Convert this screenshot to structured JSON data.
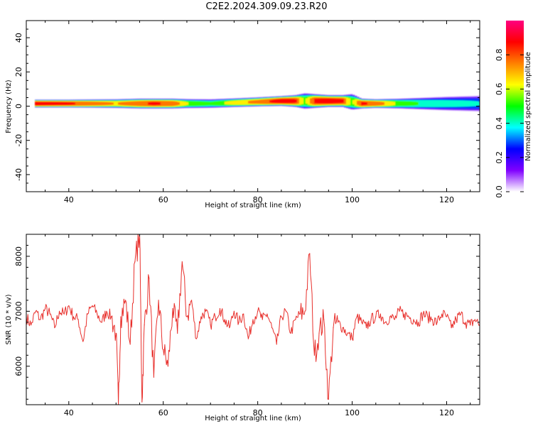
{
  "figure": {
    "title": "C2E2.2024.309.09.23.R20"
  },
  "chart_data": [
    {
      "type": "heatmap",
      "xlabel": "Height of straight line (km)",
      "ylabel": "Frequency (Hz)",
      "xlim": [
        31,
        127
      ],
      "ylim": [
        -50,
        50
      ],
      "xticks": [
        40,
        60,
        80,
        100,
        120
      ],
      "yticks": [
        -40,
        -20,
        0,
        20,
        40
      ],
      "colorbar": {
        "label": "Normalized spectral amplitude",
        "range": [
          0,
          1
        ],
        "ticks": [
          "0.0",
          "0.2",
          "0.4",
          "0.6",
          "0.8"
        ],
        "colormap": [
          "#ffffff",
          "#8000ff",
          "#0000ff",
          "#00ffff",
          "#00ff00",
          "#ffff00",
          "#ff8000",
          "#ff0000",
          "#ff0080"
        ]
      },
      "band": {
        "x": [
          33,
          40,
          50,
          55,
          58,
          62,
          65,
          70,
          75,
          80,
          85,
          88,
          90,
          92,
          95,
          98,
          100,
          102,
          105,
          110,
          115,
          120,
          127
        ],
        "center_freq": [
          1.5,
          1.5,
          1.5,
          1.5,
          1.5,
          1.5,
          1.5,
          1.5,
          2,
          2.5,
          3,
          3,
          3,
          3,
          3,
          3,
          2.5,
          1.5,
          1.5,
          1.5,
          1.5,
          1.5,
          1.5
        ],
        "halfwidth": [
          2,
          2,
          2.2,
          2.5,
          2.5,
          2.5,
          2.3,
          2.2,
          2.2,
          2.3,
          2.5,
          3,
          4,
          3.5,
          3,
          3,
          4,
          2.5,
          2.2,
          2.5,
          3,
          3.5,
          4
        ],
        "peak": [
          0.95,
          0.9,
          0.75,
          0.85,
          0.9,
          0.85,
          0.65,
          0.55,
          0.7,
          0.8,
          0.95,
          0.9,
          0.6,
          0.9,
          0.95,
          0.9,
          0.6,
          0.9,
          0.85,
          0.6,
          0.5,
          0.45,
          0.4
        ]
      }
    },
    {
      "type": "line",
      "xlabel": "Height of straight line (km)",
      "ylabel": "SNR (10 * v/v)",
      "xlim": [
        31,
        127
      ],
      "ylim": [
        5300,
        8400
      ],
      "xticks": [
        40,
        60,
        80,
        100,
        120
      ],
      "yticks": [
        6000,
        7000,
        8000
      ],
      "series": [
        {
          "color": "#e8302c",
          "x": [
            31,
            32,
            33,
            34,
            35,
            36,
            37,
            38,
            39,
            40,
            41,
            42,
            43,
            44,
            45,
            46,
            47,
            48,
            49,
            50,
            50.5,
            51,
            52,
            53,
            54,
            55,
            55.5,
            56,
            57,
            58,
            59,
            60,
            61,
            62,
            63,
            64,
            65,
            66,
            67,
            68,
            69,
            70,
            71,
            72,
            73,
            74,
            75,
            76,
            77,
            78,
            79,
            80,
            81,
            82,
            83,
            84,
            85,
            86,
            87,
            88,
            89,
            90,
            91,
            92,
            93,
            94,
            95,
            96,
            97,
            98,
            99,
            100,
            101,
            102,
            103,
            104,
            105,
            106,
            107,
            108,
            109,
            110,
            111,
            112,
            113,
            114,
            115,
            116,
            117,
            118,
            119,
            120,
            121,
            122,
            123,
            124,
            125,
            126,
            127
          ],
          "values": [
            6900,
            6750,
            7000,
            6850,
            7050,
            6950,
            6700,
            7000,
            6950,
            7100,
            6900,
            6850,
            6450,
            6950,
            7100,
            6950,
            6800,
            7000,
            6900,
            6600,
            5300,
            6900,
            7200,
            6400,
            7900,
            8400,
            5350,
            6750,
            7600,
            5800,
            7200,
            6300,
            6000,
            7050,
            6600,
            7900,
            6900,
            7200,
            6500,
            6900,
            7000,
            6750,
            6900,
            7050,
            6850,
            6700,
            7000,
            6800,
            6950,
            6500,
            6850,
            7000,
            6850,
            6950,
            6700,
            6400,
            6900,
            7000,
            6600,
            6850,
            6950,
            7000,
            8050,
            6200,
            6600,
            6850,
            5400,
            6700,
            6800,
            6700,
            6600,
            6500,
            6900,
            6800,
            6700,
            6850,
            6900,
            6950,
            6800,
            6900,
            6850,
            7000,
            6950,
            6900,
            6850,
            6800,
            6950,
            6900,
            6850,
            6800,
            6950,
            6900,
            6700,
            6850,
            6950,
            6800,
            6750,
            6850,
            6750
          ]
        }
      ]
    }
  ]
}
